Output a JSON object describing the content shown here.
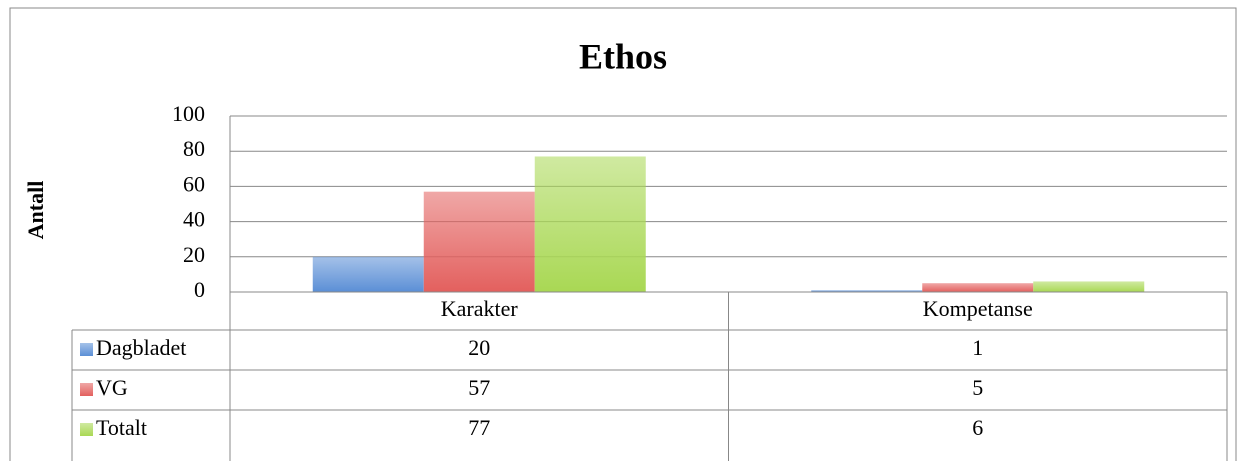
{
  "chart_data": {
    "type": "bar",
    "title": "Ethos",
    "y_label": "Antall",
    "categories": [
      "Karakter",
      "Kompetanse"
    ],
    "series": [
      {
        "name": "Dagbladet",
        "color": "#5b8fd6",
        "values": [
          20,
          1
        ]
      },
      {
        "name": "VG",
        "color": "#e3605e",
        "values": [
          57,
          5
        ]
      },
      {
        "name": "Totalt",
        "color": "#a9d854",
        "values": [
          77,
          6
        ]
      }
    ],
    "ylim": [
      0,
      100
    ],
    "yticks": [
      0,
      20,
      40,
      60,
      80,
      100
    ],
    "grid": true,
    "data_table": true
  }
}
